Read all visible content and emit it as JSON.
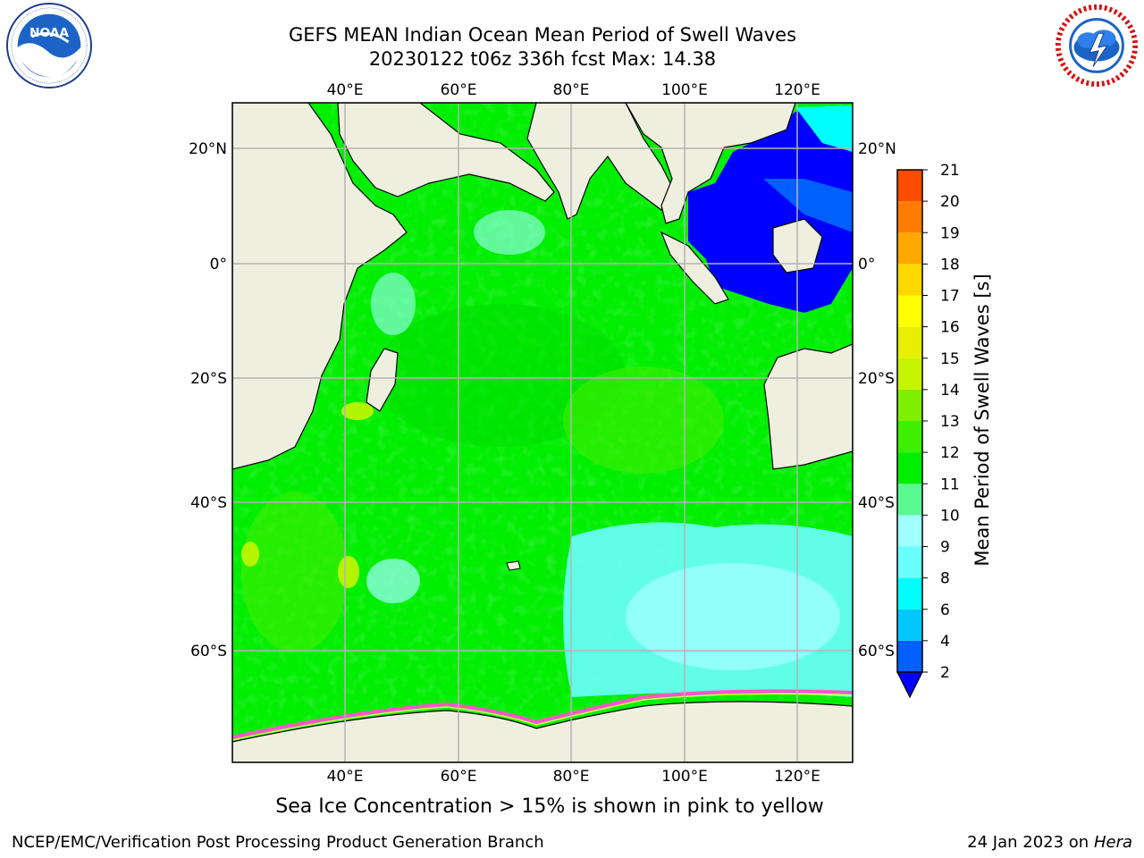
{
  "title": {
    "line1": "GEFS MEAN Indian Ocean Mean Period of Swell Waves",
    "line2": "20230122 t06z 336h fcst   Max: 14.38"
  },
  "logos": {
    "left": {
      "name": "NOAA",
      "ring_text": "NATIONAL OCEANIC AND ATMOSPHERIC ADMINISTRATION · U.S. DEPARTMENT OF COMMERCE"
    },
    "right": {
      "name": "NATIONAL WEATHER SERVICE"
    }
  },
  "map": {
    "lon_ticks": [
      "40°E",
      "60°E",
      "80°E",
      "100°E",
      "120°E"
    ],
    "lat_ticks": [
      "20°N",
      "0°",
      "20°S",
      "40°S",
      "60°S"
    ],
    "land_color": "#efefdf",
    "grid_color": "#b4b4b4"
  },
  "colorbar": {
    "label": "Mean Period of Swell Waves [s]",
    "ticks": [
      "2",
      "4",
      "6",
      "8",
      "9",
      "10",
      "11",
      "12",
      "13",
      "14",
      "15",
      "16",
      "17",
      "18",
      "19",
      "20",
      "21"
    ],
    "colors": [
      "#0060ff",
      "#00c8ff",
      "#00ffff",
      "#6affff",
      "#a0ffff",
      "#5af890",
      "#00ee00",
      "#3fef00",
      "#7fef00",
      "#c6f500",
      "#e6f000",
      "#ffff00",
      "#ffd800",
      "#ffa800",
      "#ff7c00",
      "#ff4c00",
      "#ff1800",
      "#ff0000"
    ],
    "under_color": "#0000ff"
  },
  "footnote": "Sea Ice Concentration > 15% is shown in pink to yellow",
  "footer": {
    "left": "NCEP/EMC/Verification Post Processing Product Generation Branch",
    "right_date": "24 Jan 2023 on ",
    "right_host": "Hera"
  }
}
